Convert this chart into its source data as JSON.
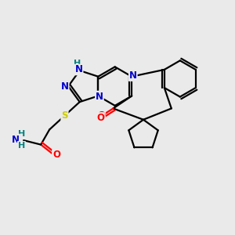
{
  "bg": "#eaeaea",
  "bond_color": "#000000",
  "bond_lw": 1.6,
  "atom_colors": {
    "N": "#0000cc",
    "O": "#ff0000",
    "S": "#cccc00",
    "H_N": "#008080",
    "C": "#000000"
  },
  "figsize": [
    3.0,
    3.0
  ],
  "dpi": 100,
  "xlim": [
    -2.6,
    2.8
  ],
  "ylim": [
    -1.9,
    2.1
  ]
}
